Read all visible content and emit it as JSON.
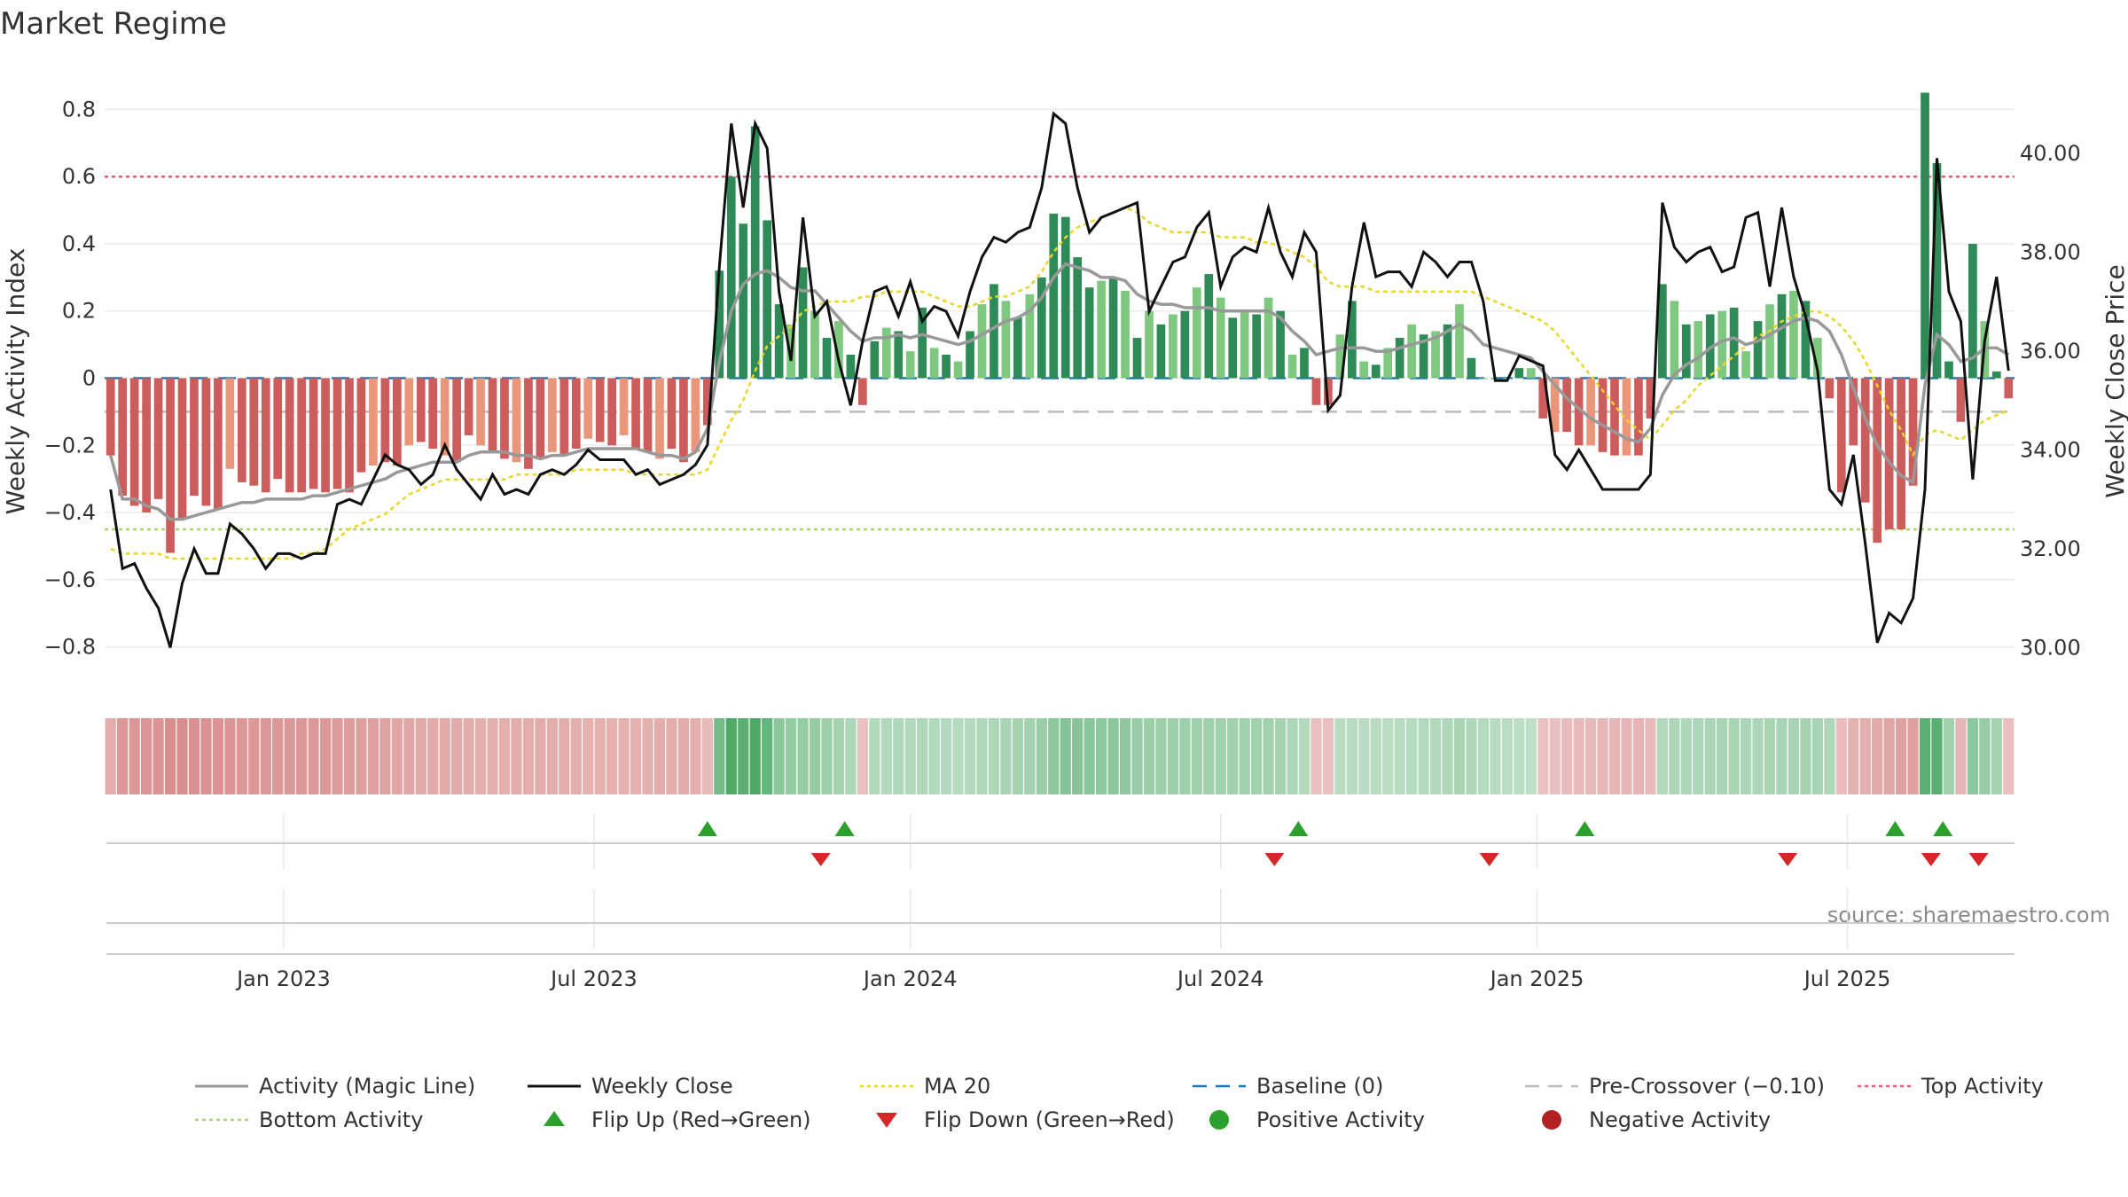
{
  "chart_data": {
    "type": "bar",
    "title": "Market Regime",
    "ylabel": "Weekly Activity Index",
    "y2label": "Weekly Close Price",
    "source": "source: sharemaestro.com",
    "ylim": [
      -0.92,
      0.92
    ],
    "y2lim": [
      29.2,
      41.7
    ],
    "y_ticks": [
      -0.8,
      -0.6,
      -0.4,
      -0.2,
      0,
      0.2,
      0.4,
      0.6,
      0.8
    ],
    "y_tick_labels": [
      "−0.8",
      "−0.6",
      "−0.4",
      "−0.2",
      "0",
      "0.2",
      "0.4",
      "0.6",
      "0.8"
    ],
    "y2_ticks": [
      30,
      32,
      34,
      36,
      38,
      40
    ],
    "y2_tick_labels": [
      "30.00",
      "32.00",
      "34.00",
      "36.00",
      "38.00",
      "40.00"
    ],
    "x_ticks": [
      {
        "label": "Jan 2023",
        "week": 15
      },
      {
        "label": "Jul 2023",
        "week": 41
      },
      {
        "label": "Jan 2024",
        "week": 67.5
      },
      {
        "label": "Jul 2024",
        "week": 93.5
      },
      {
        "label": "Jan 2025",
        "week": 120
      },
      {
        "label": "Jul 2025",
        "week": 146
      }
    ],
    "reference_lines": {
      "top": 0.6,
      "bottom": -0.45,
      "pre_crossover": -0.1,
      "baseline": 0
    },
    "activity": [
      -0.23,
      -0.35,
      -0.38,
      -0.4,
      -0.36,
      -0.52,
      -0.42,
      -0.35,
      -0.38,
      -0.39,
      -0.27,
      -0.31,
      -0.32,
      -0.34,
      -0.3,
      -0.34,
      -0.34,
      -0.33,
      -0.34,
      -0.33,
      -0.34,
      -0.28,
      -0.26,
      -0.25,
      -0.26,
      -0.2,
      -0.19,
      -0.21,
      -0.23,
      -0.25,
      -0.17,
      -0.2,
      -0.22,
      -0.24,
      -0.25,
      -0.27,
      -0.24,
      -0.22,
      -0.23,
      -0.21,
      -0.18,
      -0.19,
      -0.2,
      -0.17,
      -0.21,
      -0.22,
      -0.24,
      -0.21,
      -0.25,
      -0.22,
      -0.14,
      0.32,
      0.6,
      0.46,
      0.75,
      0.47,
      0.22,
      0.16,
      0.33,
      0.2,
      0.12,
      0.17,
      0.07,
      -0.08,
      0.11,
      0.15,
      0.14,
      0.08,
      0.21,
      0.09,
      0.07,
      0.05,
      0.14,
      0.22,
      0.28,
      0.23,
      0.18,
      0.25,
      0.3,
      0.49,
      0.48,
      0.36,
      0.27,
      0.29,
      0.3,
      0.26,
      0.12,
      0.2,
      0.16,
      0.19,
      0.2,
      0.27,
      0.31,
      0.24,
      0.18,
      0.2,
      0.19,
      0.24,
      0.2,
      0.07,
      0.09,
      -0.08,
      -0.08,
      0.13,
      0.23,
      0.05,
      0.04,
      0.09,
      0.12,
      0.16,
      0.13,
      0.14,
      0.16,
      0.22,
      0.06,
      0.0,
      0.0,
      0.0,
      0.03,
      0.03,
      -0.12,
      -0.16,
      -0.16,
      -0.2,
      -0.2,
      -0.22,
      -0.23,
      -0.23,
      -0.23,
      -0.12,
      0.28,
      0.23,
      0.16,
      0.17,
      0.19,
      0.2,
      0.21,
      0.08,
      0.17,
      0.22,
      0.25,
      0.26,
      0.23,
      0.12,
      -0.06,
      -0.34,
      -0.2,
      -0.37,
      -0.49,
      -0.45,
      -0.45,
      -0.32,
      0.85,
      0.64,
      0.05,
      -0.13,
      0.4,
      0.17,
      0.02,
      -0.06
    ],
    "close": [
      33.2,
      31.6,
      31.7,
      31.2,
      30.8,
      30.0,
      31.3,
      32.0,
      31.5,
      31.5,
      32.5,
      32.3,
      32.0,
      31.6,
      31.9,
      31.9,
      31.8,
      31.9,
      31.9,
      32.9,
      33.0,
      32.9,
      33.4,
      33.9,
      33.7,
      33.6,
      33.3,
      33.5,
      34.1,
      33.6,
      33.3,
      33.0,
      33.5,
      33.1,
      33.2,
      33.1,
      33.5,
      33.6,
      33.5,
      33.7,
      34.0,
      33.8,
      33.8,
      33.8,
      33.5,
      33.6,
      33.3,
      33.4,
      33.5,
      33.7,
      34.1,
      37.7,
      40.6,
      38.9,
      40.6,
      40.1,
      37.2,
      35.8,
      38.7,
      36.7,
      37.0,
      35.8,
      34.9,
      36.2,
      37.2,
      37.3,
      36.7,
      37.4,
      36.6,
      36.9,
      36.8,
      36.3,
      37.2,
      37.9,
      38.3,
      38.2,
      38.4,
      38.5,
      39.3,
      40.8,
      40.6,
      39.3,
      38.4,
      38.7,
      38.8,
      38.9,
      39.0,
      36.8,
      37.3,
      37.8,
      37.9,
      38.5,
      38.8,
      37.3,
      37.9,
      38.1,
      38.0,
      38.9,
      38.0,
      37.5,
      38.4,
      38.0,
      34.8,
      35.1,
      37.3,
      38.6,
      37.5,
      37.6,
      37.6,
      37.3,
      38.0,
      37.8,
      37.5,
      37.8,
      37.8,
      37.0,
      35.4,
      35.4,
      35.9,
      35.8,
      35.7,
      33.9,
      33.6,
      34.0,
      33.6,
      33.2,
      33.2,
      33.2,
      33.2,
      33.5,
      39.0,
      38.1,
      37.8,
      38.0,
      38.1,
      37.6,
      37.7,
      38.7,
      38.8,
      37.3,
      38.9,
      37.5,
      36.7,
      35.6,
      33.2,
      32.9,
      33.9,
      32.1,
      30.1,
      30.7,
      30.5,
      31.0,
      33.2,
      39.9,
      37.2,
      36.6,
      33.4,
      36.2,
      37.5,
      35.6
    ],
    "magic_line": [
      -0.23,
      -0.36,
      -0.36,
      -0.38,
      -0.39,
      -0.42,
      -0.42,
      -0.41,
      -0.4,
      -0.39,
      -0.38,
      -0.37,
      -0.37,
      -0.36,
      -0.36,
      -0.36,
      -0.36,
      -0.35,
      -0.35,
      -0.34,
      -0.33,
      -0.32,
      -0.31,
      -0.3,
      -0.28,
      -0.27,
      -0.26,
      -0.25,
      -0.25,
      -0.25,
      -0.23,
      -0.22,
      -0.22,
      -0.22,
      -0.23,
      -0.23,
      -0.24,
      -0.23,
      -0.23,
      -0.22,
      -0.21,
      -0.21,
      -0.21,
      -0.21,
      -0.21,
      -0.22,
      -0.23,
      -0.23,
      -0.24,
      -0.22,
      -0.15,
      0.05,
      0.2,
      0.28,
      0.31,
      0.32,
      0.3,
      0.27,
      0.26,
      0.26,
      0.22,
      0.18,
      0.14,
      0.11,
      0.12,
      0.12,
      0.13,
      0.12,
      0.13,
      0.12,
      0.11,
      0.1,
      0.11,
      0.13,
      0.15,
      0.17,
      0.18,
      0.2,
      0.24,
      0.3,
      0.34,
      0.33,
      0.32,
      0.3,
      0.3,
      0.29,
      0.25,
      0.23,
      0.22,
      0.22,
      0.21,
      0.21,
      0.21,
      0.2,
      0.2,
      0.2,
      0.2,
      0.2,
      0.18,
      0.14,
      0.11,
      0.07,
      0.08,
      0.09,
      0.09,
      0.09,
      0.08,
      0.08,
      0.09,
      0.1,
      0.11,
      0.12,
      0.14,
      0.16,
      0.14,
      0.1,
      0.09,
      0.08,
      0.07,
      0.06,
      0.02,
      -0.02,
      -0.06,
      -0.09,
      -0.12,
      -0.14,
      -0.16,
      -0.18,
      -0.19,
      -0.15,
      -0.05,
      0.01,
      0.04,
      0.06,
      0.09,
      0.11,
      0.12,
      0.1,
      0.11,
      0.13,
      0.15,
      0.17,
      0.18,
      0.17,
      0.14,
      0.07,
      -0.03,
      -0.12,
      -0.2,
      -0.25,
      -0.29,
      -0.31,
      -0.02,
      0.13,
      0.1,
      0.05,
      0.06,
      0.09,
      0.09,
      0.07
    ],
    "ma20": [
      32.0,
      31.9,
      31.9,
      31.9,
      31.9,
      31.8,
      31.8,
      31.8,
      31.8,
      31.8,
      31.8,
      31.8,
      31.8,
      31.8,
      31.8,
      31.8,
      31.9,
      31.9,
      32.0,
      32.2,
      32.4,
      32.5,
      32.6,
      32.7,
      32.9,
      33.1,
      33.2,
      33.3,
      33.4,
      33.4,
      33.4,
      33.4,
      33.4,
      33.4,
      33.5,
      33.5,
      33.5,
      33.5,
      33.5,
      33.6,
      33.6,
      33.6,
      33.6,
      33.6,
      33.5,
      33.5,
      33.5,
      33.5,
      33.5,
      33.5,
      33.6,
      34.1,
      34.6,
      35.0,
      35.6,
      36.1,
      36.3,
      36.5,
      36.8,
      36.9,
      37.0,
      37.0,
      37.0,
      37.1,
      37.1,
      37.2,
      37.2,
      37.2,
      37.2,
      37.1,
      37.0,
      36.9,
      36.9,
      37.0,
      37.1,
      37.1,
      37.2,
      37.3,
      37.6,
      38.0,
      38.3,
      38.5,
      38.6,
      38.7,
      38.8,
      38.9,
      38.8,
      38.6,
      38.5,
      38.4,
      38.4,
      38.4,
      38.4,
      38.3,
      38.3,
      38.3,
      38.2,
      38.2,
      38.1,
      38.0,
      37.9,
      37.7,
      37.4,
      37.3,
      37.3,
      37.3,
      37.2,
      37.2,
      37.2,
      37.2,
      37.2,
      37.2,
      37.2,
      37.2,
      37.2,
      37.1,
      37.0,
      36.9,
      36.8,
      36.7,
      36.6,
      36.4,
      36.1,
      35.8,
      35.5,
      35.2,
      34.9,
      34.6,
      34.4,
      34.2,
      34.5,
      34.8,
      35.0,
      35.3,
      35.5,
      35.7,
      35.9,
      36.1,
      36.3,
      36.4,
      36.6,
      36.7,
      36.8,
      36.8,
      36.7,
      36.5,
      36.2,
      35.8,
      35.3,
      34.8,
      34.4,
      33.9,
      34.3,
      34.4,
      34.3,
      34.2,
      34.4,
      34.6,
      34.7,
      34.8
    ],
    "regime_strip": [
      -0.23,
      -0.36,
      -0.36,
      -0.38,
      -0.39,
      -0.42,
      -0.42,
      -0.41,
      -0.4,
      -0.39,
      -0.38,
      -0.37,
      -0.37,
      -0.36,
      -0.36,
      -0.36,
      -0.36,
      -0.35,
      -0.35,
      -0.34,
      -0.33,
      -0.32,
      -0.31,
      -0.3,
      -0.28,
      -0.27,
      -0.26,
      -0.25,
      -0.25,
      -0.25,
      -0.23,
      -0.22,
      -0.22,
      -0.22,
      -0.23,
      -0.23,
      -0.24,
      -0.23,
      -0.23,
      -0.22,
      -0.21,
      -0.21,
      -0.21,
      -0.21,
      -0.21,
      -0.22,
      -0.23,
      -0.23,
      -0.24,
      -0.22,
      -0.15,
      0.42,
      0.6,
      0.55,
      0.62,
      0.5,
      0.3,
      0.27,
      0.26,
      0.26,
      0.22,
      0.18,
      0.14,
      -0.11,
      0.12,
      0.12,
      0.13,
      0.12,
      0.13,
      0.12,
      0.11,
      0.1,
      0.11,
      0.13,
      0.15,
      0.17,
      0.18,
      0.2,
      0.24,
      0.3,
      0.34,
      0.33,
      0.32,
      0.3,
      0.3,
      0.29,
      0.25,
      0.23,
      0.22,
      0.22,
      0.21,
      0.21,
      0.21,
      0.2,
      0.2,
      0.2,
      0.2,
      0.2,
      0.18,
      0.14,
      0.11,
      -0.12,
      -0.12,
      0.09,
      0.09,
      0.09,
      0.08,
      0.08,
      0.09,
      0.1,
      0.11,
      0.12,
      0.14,
      0.16,
      0.14,
      0.1,
      0.09,
      0.08,
      0.07,
      0.06,
      -0.1,
      -0.12,
      -0.14,
      -0.15,
      -0.16,
      -0.17,
      -0.18,
      -0.19,
      -0.19,
      -0.15,
      0.12,
      0.14,
      0.14,
      0.15,
      0.15,
      0.16,
      0.16,
      0.15,
      0.15,
      0.16,
      0.17,
      0.17,
      0.18,
      0.17,
      0.14,
      -0.14,
      -0.2,
      -0.22,
      -0.25,
      -0.28,
      -0.3,
      -0.31,
      0.55,
      0.55,
      0.2,
      -0.18,
      0.3,
      0.25,
      0.18,
      -0.12
    ],
    "flip_up_weeks": [
      50.5,
      62,
      100,
      124,
      150,
      154
    ],
    "flip_down_weeks": [
      60,
      98,
      116,
      141,
      153,
      157
    ],
    "legend": [
      {
        "label": "Activity (Magic Line)",
        "kind": "line",
        "color": "#999999"
      },
      {
        "label": "Weekly Close",
        "kind": "line",
        "color": "#111111"
      },
      {
        "label": "MA 20",
        "kind": "dotted",
        "color": "#e8d72a"
      },
      {
        "label": "Baseline (0)",
        "kind": "dashed",
        "color": "#1f77b4"
      },
      {
        "label": "Pre-Crossover (−0.10)",
        "kind": "dashed",
        "color": "#bbbbbb"
      },
      {
        "label": "Top Activity",
        "kind": "dotted",
        "color": "#e05c7a"
      },
      {
        "label": "Bottom Activity",
        "kind": "dotted",
        "color": "#a9d46a"
      },
      {
        "label": "Flip Up (Red→Green)",
        "kind": "tri-up",
        "color": "#2ca02c"
      },
      {
        "label": "Flip Down (Green→Red)",
        "kind": "tri-down",
        "color": "#d62728"
      },
      {
        "label": "Positive Activity",
        "kind": "dot",
        "color": "#2ca02c"
      },
      {
        "label": "Negative Activity",
        "kind": "dot",
        "color": "#b22222"
      }
    ]
  },
  "colors": {
    "pos_strong": "#2e8b57",
    "pos_light": "#7fc87f",
    "neg_strong": "#cd5c5c",
    "neg_light": "#e9967a",
    "close_line": "#111111",
    "magic_line": "#999999",
    "ma20": "#e8d72a",
    "baseline": "#1f77b4",
    "pre_crossover": "#bbbbbb",
    "top_line": "#e05c7a",
    "bottom_line": "#a9d46a",
    "flip_up": "#2ca02c",
    "flip_down": "#d62728"
  }
}
